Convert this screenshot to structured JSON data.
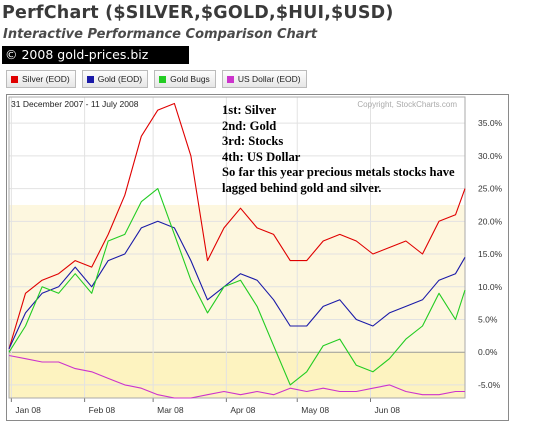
{
  "header": {
    "title": "PerfChart ($SILVER,$GOLD,$HUI,$USD)",
    "subtitle": "Interactive Performance Comparison Chart",
    "watermark": "© 2008 gold-prices.biz"
  },
  "legend": [
    {
      "label": "Silver (EOD)",
      "color": "#e00000"
    },
    {
      "label": "Gold (EOD)",
      "color": "#1a1aa8"
    },
    {
      "label": "Gold Bugs",
      "color": "#22cc22"
    },
    {
      "label": "US Dollar (EOD)",
      "color": "#cc33cc"
    }
  ],
  "annotation": {
    "lines": [
      "1st: Silver",
      "2nd: Gold",
      "3rd: Stocks",
      "4th: US Dollar",
      "So far this year precious metals stocks have",
      "lagged behind gold and silver."
    ]
  },
  "chart_data": {
    "type": "line",
    "date_range_label": "31 December 2007 - 11 July 2008",
    "copyright": "Copyright, StockCharts.com",
    "x_tick_labels": [
      "Jan 08",
      "Feb 08",
      "Mar 08",
      "Apr 08",
      "May 08",
      "Jun 08"
    ],
    "y_tick_labels": [
      "35.0%",
      "30.0%",
      "25.0%",
      "20.0%",
      "15.0%",
      "10.0%",
      "5.0%",
      "0.0%",
      "-5.0%"
    ],
    "ylim": [
      -7,
      39
    ],
    "y_unit": "% change",
    "grid": true,
    "bands": [
      {
        "from": 0,
        "to": 22.5,
        "color": "#fdf7df"
      },
      {
        "from": -7,
        "to": 0,
        "color": "#fdf3c0"
      }
    ],
    "x": [
      "2007-12-31",
      "2008-01-07",
      "2008-01-14",
      "2008-01-21",
      "2008-01-28",
      "2008-02-04",
      "2008-02-11",
      "2008-02-18",
      "2008-02-25",
      "2008-03-03",
      "2008-03-10",
      "2008-03-17",
      "2008-03-24",
      "2008-03-31",
      "2008-04-07",
      "2008-04-14",
      "2008-04-21",
      "2008-04-28",
      "2008-05-05",
      "2008-05-12",
      "2008-05-19",
      "2008-05-26",
      "2008-06-02",
      "2008-06-09",
      "2008-06-16",
      "2008-06-23",
      "2008-06-30",
      "2008-07-07",
      "2008-07-11"
    ],
    "series": [
      {
        "name": "Silver (EOD)",
        "color": "#e00000",
        "values": [
          0.5,
          9,
          11,
          12,
          14,
          13,
          18,
          24,
          33,
          37,
          38,
          30,
          14,
          19,
          22,
          19,
          18,
          14,
          14,
          17,
          18,
          17,
          15,
          16,
          17,
          15,
          20,
          21,
          25
        ]
      },
      {
        "name": "Gold (EOD)",
        "color": "#1a1aa8",
        "values": [
          0.5,
          6,
          9,
          10,
          13,
          10,
          14,
          15,
          19,
          20,
          19,
          14,
          8,
          10,
          12,
          11,
          8,
          4,
          4,
          7,
          8,
          5,
          4,
          6,
          7,
          8,
          11,
          12,
          14.5
        ]
      },
      {
        "name": "Gold Bugs",
        "color": "#22cc22",
        "values": [
          0,
          4,
          10,
          9,
          12,
          9,
          17,
          18,
          23,
          25,
          18,
          11,
          6,
          10,
          11,
          7,
          1,
          -5,
          -3,
          1,
          2,
          -2,
          -3,
          -1,
          2,
          4,
          9,
          5,
          9.5
        ]
      },
      {
        "name": "US Dollar (EOD)",
        "color": "#cc33cc",
        "values": [
          -0.5,
          -1,
          -1.5,
          -1.5,
          -2.5,
          -3,
          -4,
          -5,
          -5.5,
          -6.5,
          -7,
          -7,
          -6.5,
          -6,
          -6.5,
          -6,
          -6.5,
          -5.5,
          -6,
          -5.5,
          -6,
          -6,
          -5.5,
          -5,
          -6,
          -6.5,
          -6.5,
          -6,
          -6
        ]
      }
    ]
  }
}
